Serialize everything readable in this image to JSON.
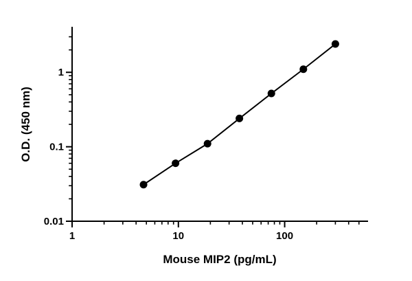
{
  "chart_data": {
    "type": "scatter",
    "title": "",
    "xlabel": "Mouse MIP2 (pg/mL)",
    "ylabel": "O.D. (450 nm)",
    "x_scale": "log",
    "y_scale": "log",
    "xlim": [
      1,
      600
    ],
    "ylim": [
      0.01,
      4
    ],
    "x_ticks": [
      1,
      10,
      100
    ],
    "x_tick_labels": [
      "1",
      "10",
      "100"
    ],
    "y_ticks": [
      0.01,
      0.1,
      1
    ],
    "y_tick_labels": [
      "0.01",
      "0.1",
      "1"
    ],
    "grid": false,
    "legend": false,
    "series": [
      {
        "marker": "circle",
        "line": "solid",
        "color": "#000000",
        "x": [
          4.7,
          9.4,
          18.8,
          37.5,
          75,
          150,
          300
        ],
        "y": [
          0.031,
          0.06,
          0.11,
          0.24,
          0.52,
          1.1,
          2.4
        ]
      }
    ]
  },
  "colors": {
    "axis": "#000000",
    "tick_label": "#000000",
    "background": "#ffffff"
  }
}
